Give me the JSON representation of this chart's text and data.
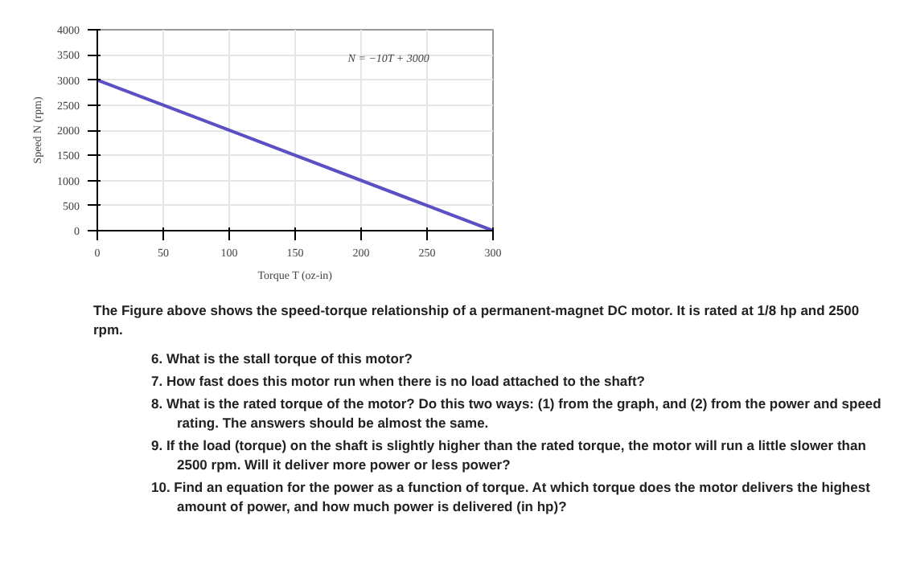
{
  "chart_data": {
    "type": "line",
    "xlabel": "Torque T (oz-in)",
    "ylabel": "Speed N (rpm)",
    "x": [
      0,
      300
    ],
    "series": [
      {
        "color": "#5b4fc4",
        "values": [
          3000,
          0
        ]
      }
    ],
    "xlim": [
      0,
      300
    ],
    "ylim": [
      0,
      4000
    ],
    "xticks": [
      0,
      50,
      100,
      150,
      200,
      250,
      300
    ],
    "yticks": [
      0,
      500,
      1000,
      1500,
      2000,
      2500,
      3000,
      3500,
      4000
    ],
    "grid": true,
    "annotations": [
      "N = −10T + 3000",
      "The Figure above shows the speed-torque relationship of a permanent-magnet DC motor.  It is rated at 1/8 hp and 2500 rpm.",
      "6.  What is the stall torque of this motor?",
      "7.  How fast does this motor run when there is no load attached to the shaft?",
      "8.  What is the rated torque of the motor?  Do this two ways: (1) from the graph, and (2) from the power and speed rating.  The answers should be almost the same.",
      "9.  If the load (torque) on the shaft is slightly higher than the rated torque, the motor will run a little slower than 2500 rpm.  Will it deliver more power or less power?",
      "10. Find an equation for the power as a function of torque.  At which torque does the motor delivers the highest amount of power, and how much power is delivered (in hp)?"
    ]
  }
}
